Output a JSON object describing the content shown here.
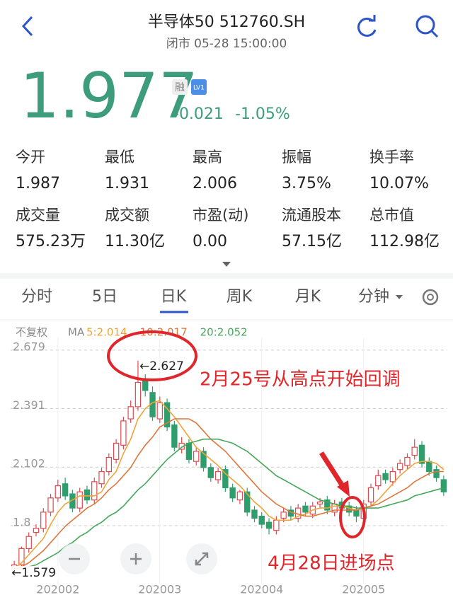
{
  "header": {
    "title": "半导体50 512760.SH",
    "status": "闭市 05-28 15:00:00"
  },
  "quote": {
    "price": "1.977",
    "badge_margin": "融",
    "badge_level": "LV1",
    "change": "-0.021",
    "change_pct": "-1.05%"
  },
  "stats": [
    {
      "label": "今开",
      "value": "1.987"
    },
    {
      "label": "最低",
      "value": "1.931"
    },
    {
      "label": "最高",
      "value": "2.006"
    },
    {
      "label": "振幅",
      "value": "3.75%"
    },
    {
      "label": "换手率",
      "value": "10.07%"
    },
    {
      "label": "成交量",
      "value": "575.23万"
    },
    {
      "label": "成交额",
      "value": "11.30亿"
    },
    {
      "label": "市盈(动)",
      "value": "0.00"
    },
    {
      "label": "流通股本",
      "value": "57.15亿"
    },
    {
      "label": "总市值",
      "value": "112.98亿"
    }
  ],
  "tabs": [
    "分时",
    "5日",
    "日K",
    "周K",
    "月K",
    "分钟"
  ],
  "chart_legend": {
    "adjust": "不复权",
    "ma": "MA"
  },
  "annotations": {
    "peak_label": "←2.627",
    "low_label": "←1.579",
    "note_peak": "2月25号从高点开始回调",
    "note_entry": "4月28日进场点"
  },
  "chart_data": {
    "type": "candlestick",
    "categories": [
      null,
      null,
      null,
      null,
      null,
      null,
      "202002",
      null,
      null,
      null,
      null,
      null,
      null,
      null,
      null,
      null,
      null,
      null,
      null,
      null,
      "202003",
      null,
      null,
      null,
      null,
      null,
      null,
      null,
      null,
      null,
      null,
      null,
      null,
      null,
      "202004",
      null,
      null,
      null,
      null,
      null,
      null,
      null,
      null,
      null,
      null,
      null,
      null,
      null,
      "202005",
      null,
      null,
      null,
      null,
      null,
      null,
      null,
      null,
      null,
      null,
      null
    ],
    "open": [
      1.6,
      1.62,
      1.7,
      1.78,
      1.8,
      1.88,
      1.95,
      2.02,
      1.97,
      1.9,
      1.99,
      1.94,
      2.02,
      2.08,
      2.14,
      2.21,
      2.34,
      2.4,
      2.53,
      2.47,
      2.34,
      2.42,
      2.31,
      2.19,
      2.22,
      2.13,
      2.18,
      2.1,
      2.04,
      2.09,
      2.0,
      1.94,
      1.98,
      1.89,
      1.86,
      1.83,
      1.79,
      1.85,
      1.89,
      1.85,
      1.91,
      1.87,
      1.92,
      1.94,
      1.88,
      1.93,
      1.91,
      1.89,
      1.85,
      1.93,
      2.01,
      2.07,
      2.03,
      2.09,
      2.11,
      2.16,
      2.21,
      2.13,
      2.09,
      2.04
    ],
    "high": [
      1.64,
      1.71,
      1.78,
      1.82,
      1.9,
      1.97,
      2.04,
      2.05,
      1.99,
      2.0,
      2.01,
      2.05,
      2.1,
      2.17,
      2.24,
      2.35,
      2.43,
      2.627,
      2.56,
      2.5,
      2.45,
      2.44,
      2.33,
      2.25,
      2.24,
      2.2,
      2.2,
      2.12,
      2.1,
      2.11,
      2.02,
      1.99,
      2.0,
      1.91,
      1.88,
      1.85,
      1.86,
      1.9,
      1.91,
      1.92,
      1.93,
      1.93,
      1.95,
      1.96,
      1.94,
      1.95,
      1.93,
      1.91,
      1.94,
      2.02,
      2.09,
      2.09,
      2.1,
      2.14,
      2.17,
      2.24,
      2.23,
      2.15,
      2.11,
      2.06
    ],
    "low": [
      1.579,
      1.6,
      1.68,
      1.76,
      1.78,
      1.86,
      1.93,
      1.94,
      1.88,
      1.88,
      1.92,
      1.92,
      2.0,
      2.06,
      2.12,
      2.19,
      2.32,
      2.38,
      2.45,
      2.33,
      2.32,
      2.28,
      2.18,
      2.17,
      2.12,
      2.11,
      2.08,
      2.03,
      2.02,
      1.98,
      1.93,
      1.92,
      1.86,
      1.83,
      1.8,
      1.77,
      1.77,
      1.83,
      1.84,
      1.83,
      1.86,
      1.85,
      1.9,
      1.87,
      1.86,
      1.88,
      1.86,
      1.83,
      1.83,
      1.91,
      1.99,
      2.02,
      2.01,
      2.07,
      2.09,
      2.14,
      2.1,
      2.06,
      2.03,
      1.96
    ],
    "close": [
      1.62,
      1.7,
      1.76,
      1.8,
      1.88,
      1.95,
      2.01,
      1.96,
      1.9,
      1.98,
      1.94,
      2.03,
      2.08,
      2.15,
      2.22,
      2.33,
      2.4,
      2.52,
      2.48,
      2.35,
      2.42,
      2.3,
      2.2,
      2.22,
      2.14,
      2.18,
      2.1,
      2.05,
      2.08,
      2.0,
      1.95,
      1.98,
      1.88,
      1.85,
      1.82,
      1.8,
      1.84,
      1.88,
      1.86,
      1.9,
      1.88,
      1.91,
      1.93,
      1.89,
      1.92,
      1.9,
      1.88,
      1.86,
      1.92,
      2.0,
      2.06,
      2.04,
      2.08,
      2.12,
      2.15,
      2.2,
      2.12,
      2.08,
      2.05,
      1.98
    ],
    "up_color": "#e5474d",
    "down_color": "#2f9e6c",
    "series": [
      {
        "name": "5:2.014",
        "color": "#eea43a",
        "values": [
          1.6,
          1.63,
          1.67,
          1.71,
          1.75,
          1.82,
          1.88,
          1.92,
          1.94,
          1.96,
          1.96,
          1.96,
          1.98,
          2.04,
          2.08,
          2.17,
          2.24,
          2.34,
          2.39,
          2.42,
          2.43,
          2.39,
          2.35,
          2.3,
          2.25,
          2.2,
          2.17,
          2.14,
          2.11,
          2.07,
          2.04,
          2.01,
          1.97,
          1.93,
          1.9,
          1.86,
          1.84,
          1.84,
          1.84,
          1.86,
          1.87,
          1.89,
          1.9,
          1.9,
          1.91,
          1.91,
          1.9,
          1.89,
          1.9,
          1.91,
          1.94,
          1.98,
          2.02,
          2.06,
          2.09,
          2.12,
          2.13,
          2.13,
          2.12,
          2.09
        ]
      },
      {
        "name": "10:2.017",
        "color": "#e0763c",
        "values": [
          1.6,
          1.61,
          1.63,
          1.66,
          1.69,
          1.73,
          1.77,
          1.81,
          1.84,
          1.87,
          1.9,
          1.92,
          1.95,
          1.99,
          2.02,
          2.06,
          2.1,
          2.16,
          2.21,
          2.25,
          2.3,
          2.32,
          2.34,
          2.34,
          2.34,
          2.32,
          2.28,
          2.24,
          2.21,
          2.18,
          2.14,
          2.1,
          2.06,
          2.02,
          1.98,
          1.95,
          1.92,
          1.9,
          1.88,
          1.87,
          1.86,
          1.86,
          1.87,
          1.88,
          1.89,
          1.89,
          1.89,
          1.89,
          1.9,
          1.91,
          1.92,
          1.94,
          1.96,
          1.98,
          2.0,
          2.03,
          2.05,
          2.07,
          2.08,
          2.08
        ]
      },
      {
        "name": "20:2.052",
        "color": "#45a85a",
        "values": [
          1.6,
          1.6,
          1.61,
          1.62,
          1.64,
          1.66,
          1.68,
          1.71,
          1.73,
          1.76,
          1.78,
          1.81,
          1.83,
          1.86,
          1.88,
          1.91,
          1.95,
          1.99,
          2.02,
          2.06,
          2.1,
          2.14,
          2.17,
          2.2,
          2.22,
          2.23,
          2.24,
          2.24,
          2.24,
          2.23,
          2.22,
          2.2,
          2.18,
          2.15,
          2.12,
          2.09,
          2.06,
          2.04,
          2.02,
          2.0,
          1.98,
          1.96,
          1.94,
          1.93,
          1.92,
          1.91,
          1.91,
          1.9,
          1.9,
          1.9,
          1.9,
          1.91,
          1.92,
          1.93,
          1.94,
          1.96,
          1.97,
          1.98,
          1.99,
          2.0
        ]
      }
    ],
    "ylim": [
      1.527,
      2.738
    ],
    "yticks": [
      2.679,
      2.391,
      2.102,
      {
        "value": 1.813,
        "label": "1.8"
      }
    ],
    "grid": true
  }
}
